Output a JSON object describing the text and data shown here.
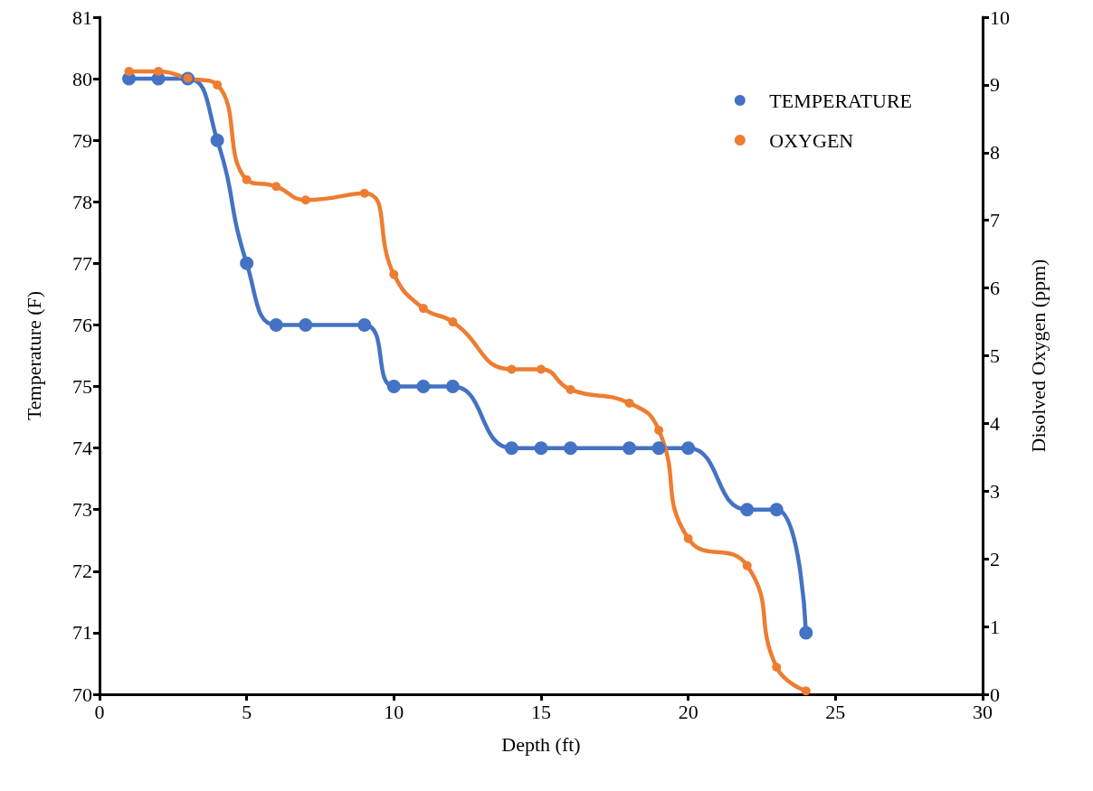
{
  "chart_data": {
    "type": "line",
    "xlabel": "Depth (ft)",
    "ylabel": "Temperature (F)",
    "y2label": "Disolved Oxygen (ppm)",
    "x": [
      1,
      2,
      3,
      4,
      5,
      6,
      7,
      9,
      10,
      11,
      12,
      14,
      15,
      16,
      18,
      19,
      20,
      22,
      23,
      24
    ],
    "series": [
      {
        "name": "TEMPERATURE",
        "color": "#4472c4",
        "values": [
          80,
          80,
          80,
          79,
          77,
          76,
          76,
          76,
          75,
          75,
          75,
          74,
          74,
          74,
          74,
          74,
          74,
          73,
          73,
          71
        ]
      },
      {
        "name": "OXYGEN",
        "color": "#ed7d31",
        "axis": "y2",
        "values": [
          9.2,
          9.2,
          9.1,
          9.0,
          7.6,
          7.5,
          7.3,
          7.4,
          6.2,
          5.7,
          5.5,
          4.8,
          4.8,
          4.5,
          4.3,
          3.9,
          2.3,
          1.9,
          0.4,
          0.05
        ]
      }
    ],
    "xlim": [
      0,
      30
    ],
    "xticks": [
      0,
      5,
      10,
      15,
      20,
      25,
      30
    ],
    "ylim": [
      70,
      81
    ],
    "yticks": [
      70,
      71,
      72,
      73,
      74,
      75,
      76,
      77,
      78,
      79,
      80,
      81
    ],
    "y2lim": [
      0,
      10
    ],
    "y2ticks": [
      0,
      1,
      2,
      3,
      4,
      5,
      6,
      7,
      8,
      9,
      10
    ],
    "grid": false,
    "legend": "top right",
    "marker": "circle",
    "line_style": "solid"
  }
}
